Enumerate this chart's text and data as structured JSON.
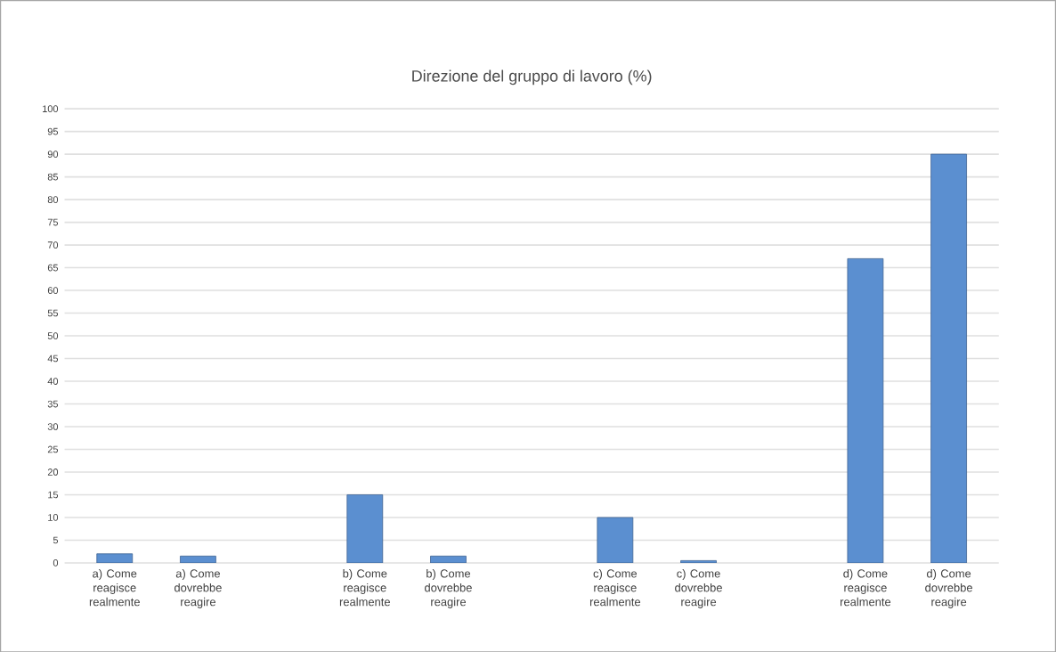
{
  "chart_data": {
    "type": "bar",
    "title": "Direzione del gruppo di lavoro (%)",
    "categories": [
      "a) Come reagisce realmente",
      "a) Come dovrebbe reagire",
      null,
      "b) Come reagisce realmente",
      "b) Come dovrebbe reagire",
      null,
      "c) Come reagisce realmente",
      "c) Come dovrebbe reagire",
      null,
      "d) Come reagisce realmente",
      "d) Come dovrebbe reagire"
    ],
    "values": [
      2,
      1.5,
      null,
      15,
      1.5,
      null,
      10,
      0.5,
      null,
      67,
      90
    ],
    "color": "#5b8fd0",
    "ylim": [
      0,
      100
    ],
    "yticks": [
      0,
      5,
      10,
      15,
      20,
      25,
      30,
      35,
      40,
      45,
      50,
      55,
      60,
      65,
      70,
      75,
      80,
      85,
      90,
      95,
      100
    ],
    "grid": "y"
  }
}
